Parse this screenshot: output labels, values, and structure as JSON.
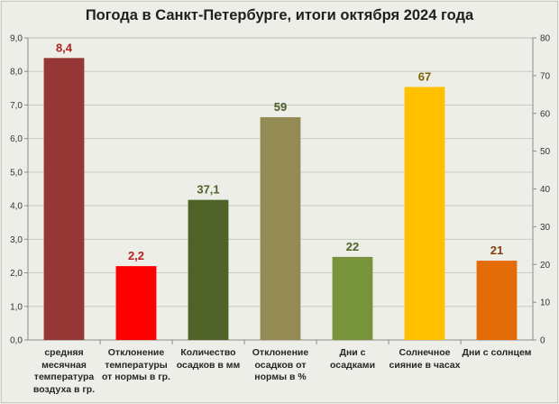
{
  "chart_data": {
    "type": "bar",
    "title": "Погода в Санкт-Петербурге, итоги октября 2024 года",
    "y_left": {
      "range": [
        0,
        9
      ],
      "step": 1,
      "ticks": [
        "0,0",
        "1,0",
        "2,0",
        "3,0",
        "4,0",
        "5,0",
        "6,0",
        "7,0",
        "8,0",
        "9,0"
      ]
    },
    "y_right": {
      "range": [
        0,
        80
      ],
      "step": 10,
      "ticks": [
        "0",
        "10",
        "20",
        "30",
        "40",
        "50",
        "60",
        "70",
        "80"
      ]
    },
    "grid": true,
    "bars": [
      {
        "category": "средняя месячная температура воздуха в гр.",
        "lines": [
          "средняя",
          "месячная",
          "температура",
          "воздуха в гр."
        ],
        "value": 8.4,
        "label": "8,4",
        "axis": "left",
        "color": "#953735",
        "label_color": "#b22222"
      },
      {
        "category": "Отклонение температуры от нормы в гр.",
        "lines": [
          "Отклонение",
          "температуры",
          "от нормы в гр."
        ],
        "value": 2.2,
        "label": "2,2",
        "axis": "left",
        "color": "#ff0000",
        "label_color": "#b22222"
      },
      {
        "category": "Количество осадков в мм",
        "lines": [
          "Количество",
          "осадков в мм"
        ],
        "value": 37.1,
        "label": "37,1",
        "axis": "right",
        "color": "#4f6228",
        "label_color": "#4f6228"
      },
      {
        "category": "Отклонение осадков от нормы в %",
        "lines": [
          "Отклонение",
          "осадков от",
          "нормы в %"
        ],
        "value": 59,
        "label": "59",
        "axis": "right",
        "color": "#948a54",
        "label_color": "#4a5a22"
      },
      {
        "category": "Дни с осадками",
        "lines": [
          "Дни с",
          "осадками"
        ],
        "value": 22,
        "label": "22",
        "axis": "right",
        "color": "#77933c",
        "label_color": "#4f6228"
      },
      {
        "category": "Солнечное сияние в часах",
        "lines": [
          "Солнечное",
          "сияние в часах"
        ],
        "value": 67,
        "label": "67",
        "axis": "right",
        "color": "#ffc000",
        "label_color": "#7f6000"
      },
      {
        "category": "Дни с солнцем",
        "lines": [
          "Дни с солнцем"
        ],
        "value": 21,
        "label": "21",
        "axis": "right",
        "color": "#e36c09",
        "label_color": "#7f3f10"
      }
    ]
  }
}
